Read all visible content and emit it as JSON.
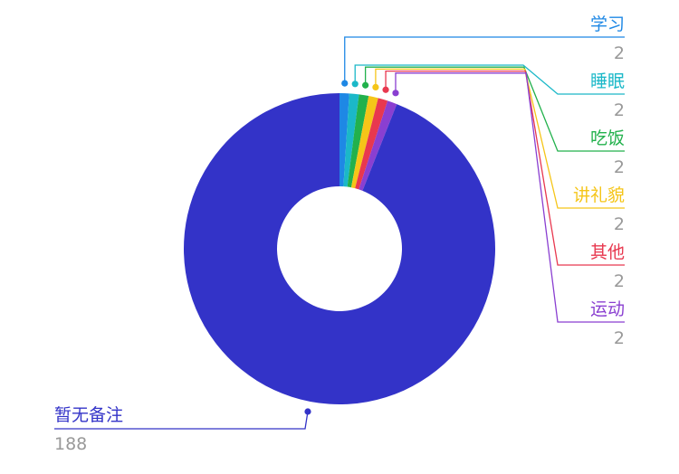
{
  "chart_data": {
    "type": "pie",
    "donut": true,
    "title": "",
    "legend": "none",
    "slices": [
      {
        "label": "学习",
        "value": 2,
        "color": "#1e88e5"
      },
      {
        "label": "睡眠",
        "value": 2,
        "color": "#1bb8c8"
      },
      {
        "label": "吃饭",
        "value": 2,
        "color": "#22b14c"
      },
      {
        "label": "讲礼貌",
        "value": 2,
        "color": "#f5c518"
      },
      {
        "label": "其他",
        "value": 2,
        "color": "#e8384f"
      },
      {
        "label": "运动",
        "value": 2,
        "color": "#8a3fd1"
      },
      {
        "label": "暂无备注",
        "value": 188,
        "color": "#3333c8"
      }
    ],
    "value_label_color": "#999999"
  }
}
